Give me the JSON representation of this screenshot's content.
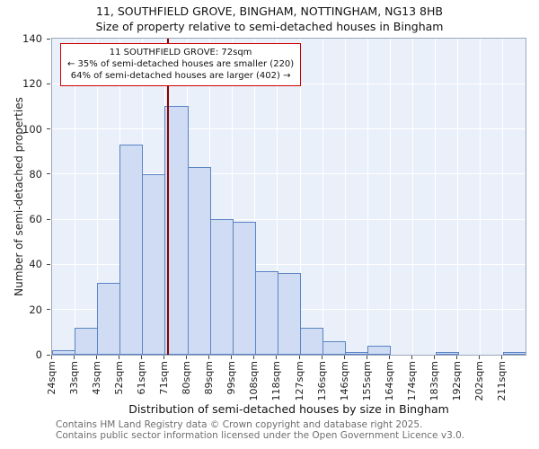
{
  "title": {
    "line1": "11, SOUTHFIELD GROVE, BINGHAM, NOTTINGHAM, NG13 8HB",
    "line2": "Size of property relative to semi-detached houses in Bingham"
  },
  "y_axis": {
    "label": "Number of semi-detached properties"
  },
  "x_axis": {
    "label": "Distribution of semi-detached houses by size in Bingham"
  },
  "annotation": {
    "line1": "11 SOUTHFIELD GROVE: 72sqm",
    "line2": "← 35% of semi-detached houses are smaller (220)",
    "line3": "64% of semi-detached houses are larger (402) →"
  },
  "footer": {
    "line1": "Contains HM Land Registry data © Crown copyright and database right 2025.",
    "line2": "Contains public sector information licensed under the Open Government Licence v3.0."
  },
  "chart_data": {
    "type": "bar",
    "title": "Size of property relative to semi-detached houses in Bingham",
    "xlabel": "Distribution of semi-detached houses by size in Bingham",
    "ylabel": "Number of semi-detached properties",
    "categories": [
      "24sqm",
      "33sqm",
      "43sqm",
      "52sqm",
      "61sqm",
      "71sqm",
      "80sqm",
      "89sqm",
      "99sqm",
      "108sqm",
      "118sqm",
      "127sqm",
      "136sqm",
      "146sqm",
      "155sqm",
      "164sqm",
      "174sqm",
      "183sqm",
      "192sqm",
      "202sqm",
      "211sqm"
    ],
    "values": [
      2,
      12,
      32,
      93,
      80,
      110,
      83,
      60,
      59,
      37,
      36,
      12,
      6,
      1,
      4,
      0,
      0,
      1,
      0,
      0,
      1
    ],
    "ylim": [
      0,
      140
    ],
    "yticks": [
      0,
      20,
      40,
      60,
      80,
      100,
      120,
      140
    ],
    "bin_start": 24,
    "bin_step": 9.35,
    "marker": {
      "label": "11 SOUTHFIELD GROVE",
      "sqm": 72
    },
    "grid": true,
    "legend": "none",
    "colors": {
      "bar_fill": "#cfdcf3",
      "bar_edge": "#5b84c4",
      "plot_bg": "#eaf0fa",
      "grid": "#ffffff",
      "marker_line": "#8b0000",
      "annotation_border": "#cc0000"
    }
  }
}
